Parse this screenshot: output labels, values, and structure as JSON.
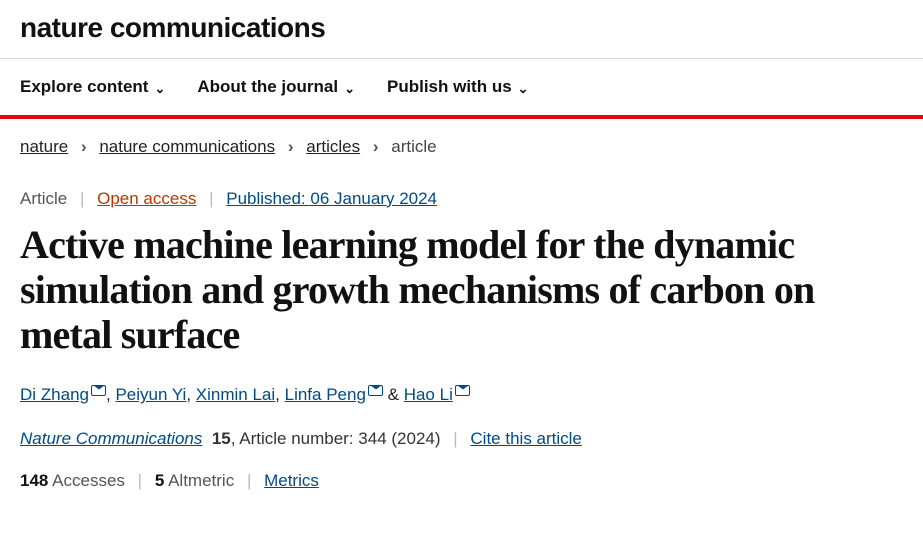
{
  "journal_name": "nature communications",
  "nav": {
    "explore": "Explore content",
    "about": "About the journal",
    "publish": "Publish with us"
  },
  "breadcrumb": {
    "items": [
      "nature",
      "nature communications",
      "articles"
    ],
    "current": "article"
  },
  "meta": {
    "type": "Article",
    "open_access": "Open access",
    "published": "Published: 06 January 2024"
  },
  "title": "Active machine learning model for the dynamic simulation and growth mechanisms of carbon on metal surface",
  "authors": [
    {
      "name": "Di Zhang",
      "corresponding": true
    },
    {
      "name": "Peiyun Yi",
      "corresponding": false
    },
    {
      "name": "Xinmin Lai",
      "corresponding": false
    },
    {
      "name": "Linfa Peng",
      "corresponding": true
    },
    {
      "name": "Hao Li",
      "corresponding": true
    }
  ],
  "citation": {
    "journal": "Nature Communications",
    "volume": "15",
    "article_label": ", Article number: 344 (2024)",
    "cite": "Cite this article"
  },
  "metrics": {
    "accesses_n": "148",
    "accesses_l": "Accesses",
    "altmetric_n": "5",
    "altmetric_l": "Altmetric",
    "link": "Metrics"
  },
  "colors": {
    "accent_red": "#e30613",
    "link_blue": "#004b83",
    "open_access": "#b33a00"
  }
}
